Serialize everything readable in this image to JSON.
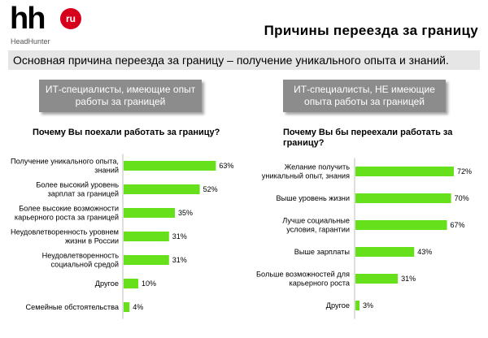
{
  "logo": {
    "brand": "hh",
    "badge": "ru",
    "subtitle": "HeadHunter"
  },
  "page_title": "Причины переезда за границу",
  "banner": "Основная причина переезда за границу – получение уникального опыта и знаний.",
  "colors": {
    "bar": "#66e01a",
    "group_box": "#8c8c8c",
    "banner": "#e6e6e6",
    "brand_red": "#d6001c"
  },
  "chart_data": [
    {
      "type": "bar",
      "orientation": "horizontal",
      "group_title": "ИТ-специалисты, имеющие опыт работы за границей",
      "title": "Почему Вы поехали работать за границу?",
      "categories": [
        [
          "Получение уникального опыта,",
          "знаний"
        ],
        [
          "Более высокий уровень",
          "зарплат за границей"
        ],
        [
          "Более высокие возможности",
          "карьерного роста за границей"
        ],
        [
          "Неудовлетворенность уровнем",
          "жизни в России"
        ],
        [
          "Неудовлетворенность",
          "социальной средой"
        ],
        [
          "Другое"
        ],
        [
          "Семейные обстоятельства"
        ]
      ],
      "values": [
        63,
        52,
        35,
        31,
        31,
        10,
        4
      ],
      "value_labels": [
        "63%",
        "52%",
        "35%",
        "31%",
        "31%",
        "10%",
        "4%"
      ],
      "unit": "%"
    },
    {
      "type": "bar",
      "orientation": "horizontal",
      "group_title": "ИТ-специалисты, НЕ имеющие опыта работы за границей",
      "title": "Почему Вы бы переехали работать за границу?",
      "categories": [
        [
          "Желание получить",
          "уникальный опыт, знания"
        ],
        [
          "Выше уровень жизни"
        ],
        [
          "Лучше социальные",
          "условия, гарантии"
        ],
        [
          "Выше зарплаты"
        ],
        [
          "Больше возможностей для",
          "карьерного роста"
        ],
        [
          "Другое"
        ]
      ],
      "values": [
        72,
        70,
        67,
        43,
        31,
        3
      ],
      "value_labels": [
        "72%",
        "70%",
        "67%",
        "43%",
        "31%",
        "3%"
      ],
      "unit": "%"
    }
  ]
}
